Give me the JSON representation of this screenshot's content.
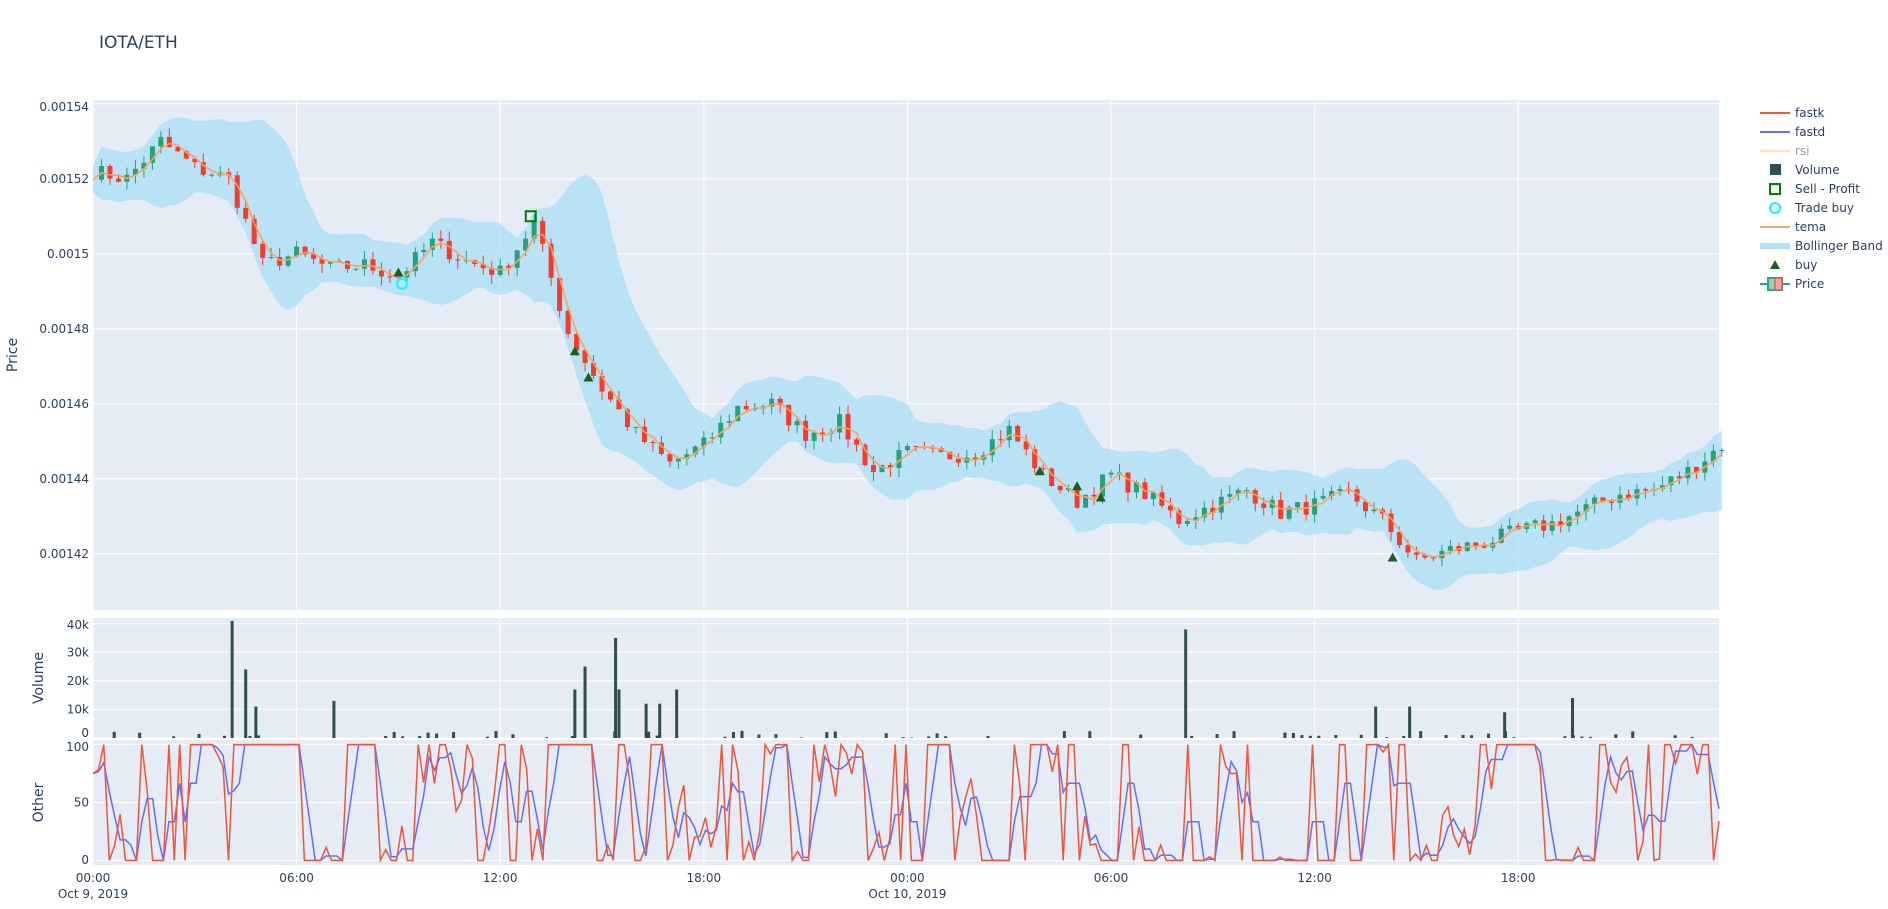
{
  "title": "IOTA/ETH",
  "chart_data": [
    {
      "type": "candlestick",
      "panel": "price",
      "ylabel": "Price",
      "ylim": [
        0.001405,
        0.001541
      ],
      "yticks": [
        "0.00142",
        "0.00144",
        "0.00146",
        "0.00148",
        "0.0015",
        "0.00152",
        "0.00154"
      ],
      "ytick_values": [
        0.00142,
        0.00144,
        0.00146,
        0.00148,
        0.0015,
        0.00152,
        0.00154
      ],
      "x_range": [
        "2019-10-09 00:00",
        "2019-10-10 23:55"
      ],
      "close_hourly_times_start": "2019-10-09 00:00",
      "close_hourly": [
        0.001522,
        0.00152,
        0.00153,
        0.001523,
        0.00152,
        0.001497,
        0.0015,
        0.001496,
        0.001497,
        0.001494,
        0.001503,
        0.001498,
        0.001495,
        0.001508,
        0.001479,
        0.001464,
        0.001452,
        0.001444,
        0.001449,
        0.001459,
        0.00146,
        0.001452,
        0.001455,
        0.001442,
        0.001447,
        0.001446,
        0.001447,
        0.001453,
        0.001441,
        0.001434,
        0.001441,
        0.001436,
        0.001429,
        0.001433,
        0.001437,
        0.001431,
        0.001433,
        0.001436,
        0.001429,
        0.001418,
        0.001421,
        0.001423,
        0.001426,
        0.001428,
        0.001432,
        0.001436,
        0.001437,
        0.001442,
        0.001449
      ],
      "buy": [
        [
          "2019-10-09 09:00",
          0.001495
        ],
        [
          "2019-10-09 14:12",
          0.001474
        ],
        [
          "2019-10-09 14:36",
          0.001467
        ],
        [
          "2019-10-10 03:54",
          0.001442
        ],
        [
          "2019-10-10 05:00",
          0.001438
        ],
        [
          "2019-10-10 05:42",
          0.001435
        ],
        [
          "2019-10-10 14:18",
          0.001419
        ]
      ],
      "trade_buy": [
        [
          "2019-10-09 09:06",
          0.001492
        ]
      ],
      "sell_profit": [
        [
          "2019-10-09 12:54",
          0.00151
        ]
      ],
      "grid": true
    },
    {
      "type": "bar",
      "panel": "volume",
      "ylabel": "Volume",
      "ylim": [
        0,
        42000
      ],
      "yticks": [
        "0",
        "10k",
        "20k",
        "30k",
        "40k"
      ],
      "ytick_values": [
        0,
        10000,
        20000,
        30000,
        40000
      ],
      "spikes": [
        [
          "2019-10-09 04:06",
          41000
        ],
        [
          "2019-10-09 04:30",
          24000
        ],
        [
          "2019-10-09 04:48",
          11000
        ],
        [
          "2019-10-09 07:06",
          13000
        ],
        [
          "2019-10-09 14:12",
          17000
        ],
        [
          "2019-10-09 14:30",
          25000
        ],
        [
          "2019-10-09 15:24",
          35000
        ],
        [
          "2019-10-09 15:30",
          17000
        ],
        [
          "2019-10-09 16:18",
          12000
        ],
        [
          "2019-10-09 16:42",
          12000
        ],
        [
          "2019-10-09 17:12",
          17000
        ],
        [
          "2019-10-10 08:12",
          38000
        ],
        [
          "2019-10-10 13:48",
          11000
        ],
        [
          "2019-10-10 14:48",
          11000
        ],
        [
          "2019-10-10 17:36",
          9000
        ],
        [
          "2019-10-10 19:36",
          14000
        ]
      ]
    },
    {
      "type": "line",
      "panel": "other",
      "ylabel": "Other",
      "ylim": [
        -4,
        104
      ],
      "yticks": [
        "0",
        "50",
        "100"
      ],
      "ytick_values": [
        0,
        50,
        100
      ],
      "series": [
        {
          "name": "fastk"
        },
        {
          "name": "fastd"
        }
      ]
    }
  ],
  "xaxis": {
    "ticks": [
      {
        "t": "2019-10-09 00:00",
        "label": "00:00",
        "sub": "Oct 9, 2019"
      },
      {
        "t": "2019-10-09 06:00",
        "label": "06:00",
        "sub": ""
      },
      {
        "t": "2019-10-09 12:00",
        "label": "12:00",
        "sub": ""
      },
      {
        "t": "2019-10-09 18:00",
        "label": "18:00",
        "sub": ""
      },
      {
        "t": "2019-10-10 00:00",
        "label": "00:00",
        "sub": "Oct 10, 2019"
      },
      {
        "t": "2019-10-10 06:00",
        "label": "06:00",
        "sub": ""
      },
      {
        "t": "2019-10-10 12:00",
        "label": "12:00",
        "sub": ""
      },
      {
        "t": "2019-10-10 18:00",
        "label": "18:00",
        "sub": ""
      }
    ]
  },
  "legend": {
    "placement": "right",
    "items": [
      {
        "label": "fastk",
        "kind": "line",
        "color": "#EF553B"
      },
      {
        "label": "fastd",
        "kind": "line",
        "color": "#636EFA"
      },
      {
        "label": "rsi",
        "kind": "line",
        "color": "#FECB52",
        "hidden": true
      },
      {
        "label": "Volume",
        "kind": "square",
        "color": "#2F4F4F"
      },
      {
        "label": "Sell - Profit",
        "kind": "open-square",
        "color": "#008000"
      },
      {
        "label": "Trade buy",
        "kind": "open-circle",
        "color": "#00FFFF"
      },
      {
        "label": "tema",
        "kind": "line",
        "color": "#FFA15A"
      },
      {
        "label": "Bollinger Band",
        "kind": "band",
        "color": "#B3E0F7"
      },
      {
        "label": "buy",
        "kind": "triangle",
        "color": "#1B5E20"
      },
      {
        "label": "Price",
        "kind": "candle",
        "color": "#26A69A"
      }
    ]
  },
  "colors": {
    "increasing": "#26A17B",
    "decreasing": "#F23C2E",
    "plot_bg": "#E5ECF6",
    "grid": "#FFFFFF",
    "tema": "#FFA15A",
    "band": "#B3E0F7",
    "volume": "#2F4F4F"
  }
}
